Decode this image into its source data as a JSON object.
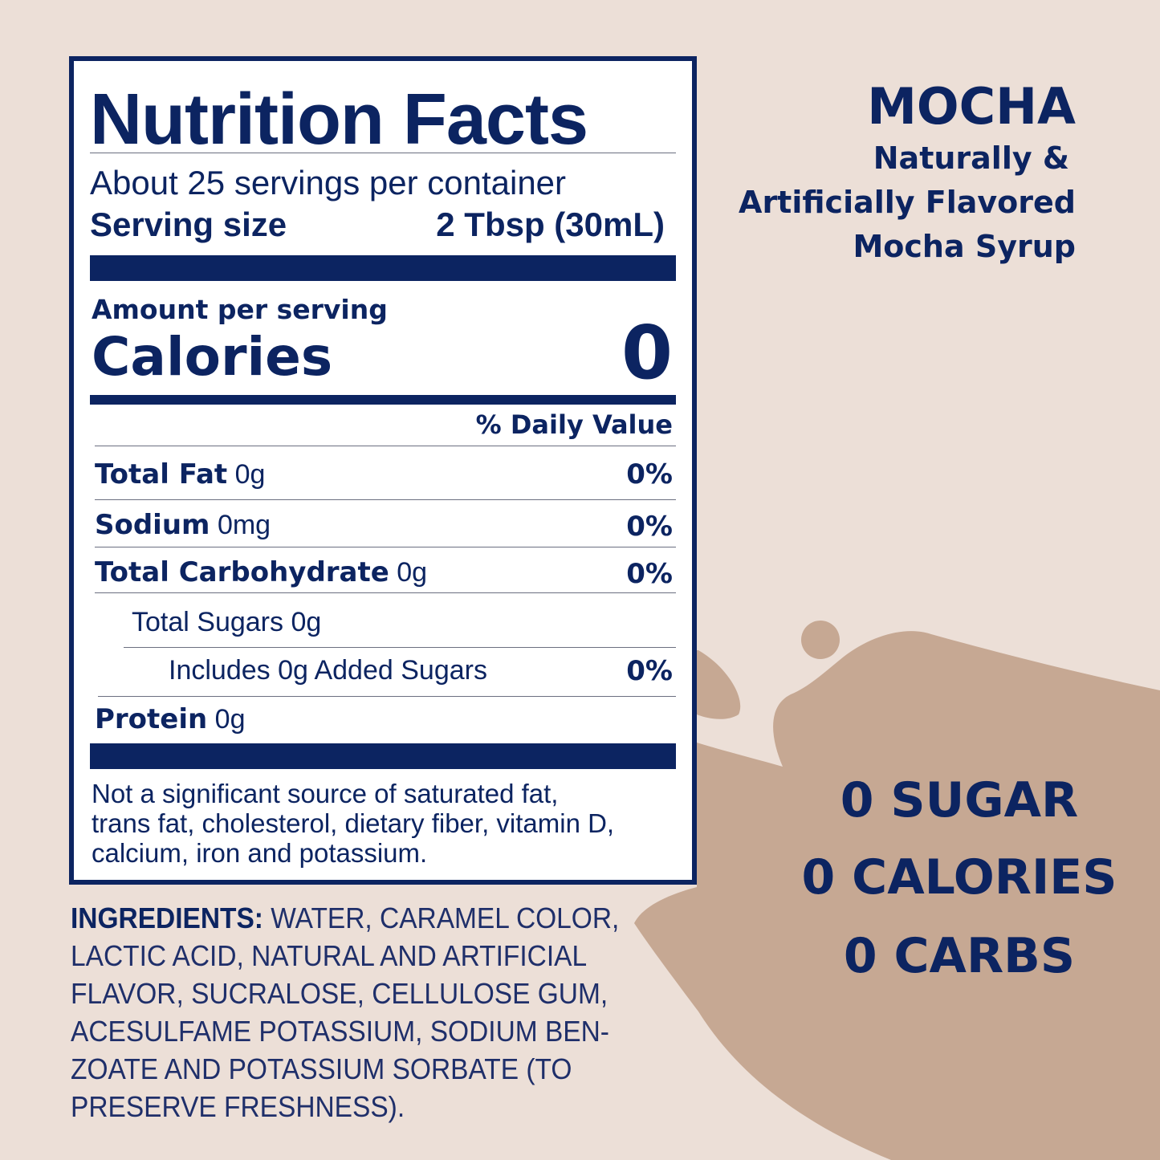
{
  "colors": {
    "background": "#ecdfd7",
    "splash": "#c6a893",
    "navy": "#0c2461"
  },
  "nutrition": {
    "title": "Nutrition Facts",
    "servings": "About 25 servings per container",
    "serving_size_label": "Serving size",
    "serving_size_value": "2 Tbsp (30mL)",
    "amount_per_serving": "Amount per serving",
    "calories_label": "Calories",
    "calories_value": "0",
    "daily_value_header": "% Daily Value",
    "rows": [
      {
        "label": "Total Fat",
        "amount": "0g",
        "dv": "0%"
      },
      {
        "label": "Sodium",
        "amount": "0mg",
        "dv": "0%"
      },
      {
        "label": "Total Carbohydrate",
        "amount": "0g",
        "dv": "0%"
      },
      {
        "label": "",
        "amount": "Total Sugars 0g",
        "dv": ""
      },
      {
        "label": "",
        "amount": "Includes 0g Added Sugars",
        "dv": "0%"
      },
      {
        "label": "Protein",
        "amount": "0g",
        "dv": ""
      }
    ],
    "footnote": [
      "Not a significant source of saturated fat,",
      "trans fat, cholesterol, dietary fiber, vitamin D,",
      "calcium, iron and potassium."
    ]
  },
  "ingredients": {
    "label": "INGREDIENTS:",
    "text": " WATER, CARAMEL COLOR, LACTIC ACID, NATURAL AND ARTIFICIAL FLAVOR, SUCRALOSE, CELLULOSE GUM, ACESULFAME POTASSIUM, SODIUM BEN-ZOATE AND POTASSIUM SORBATE (TO PRESERVE FRESHNESS)."
  },
  "product": {
    "flavor": "MOCHA",
    "desc": [
      "Naturally &",
      "Artificially Flavored",
      "Mocha Syrup"
    ]
  },
  "claims": [
    "0 SUGAR",
    "0 CALORIES",
    "0 CARBS"
  ]
}
